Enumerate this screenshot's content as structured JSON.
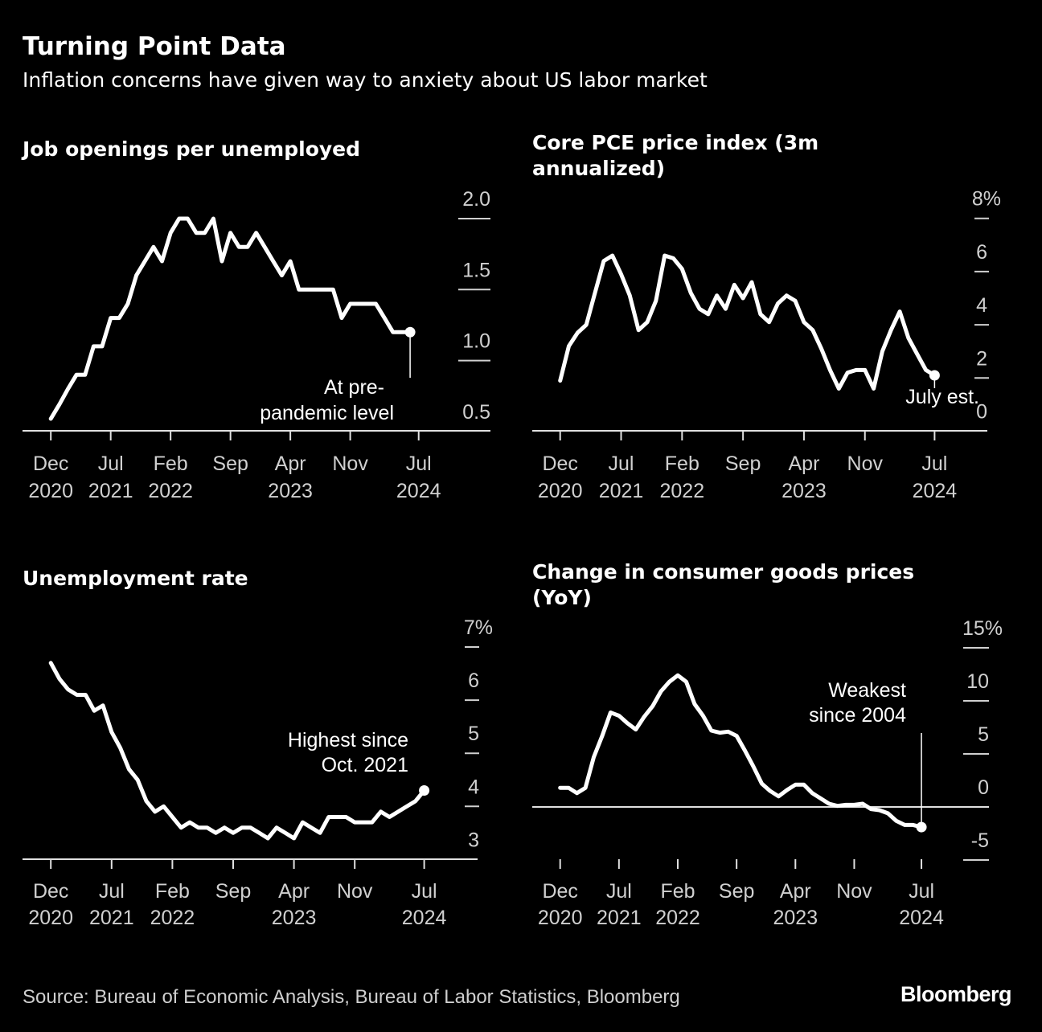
{
  "header": {
    "title": "Turning Point Data",
    "subtitle": "Inflation concerns have given way to anxiety about US labor market"
  },
  "footer": {
    "source": "Source: Bureau of Economic Analysis, Bureau of Labor Statistics, Bloomberg",
    "logo": "Bloomberg"
  },
  "colors": {
    "background": "#000000",
    "line": "#ffffff",
    "tick_label": "#d0d0d0"
  },
  "chart_data": [
    {
      "type": "line",
      "title": "Job openings per unemployed",
      "x_start": "Dec 2020",
      "x_end": "Jun 2024",
      "frequency": "monthly",
      "x_ticks": [
        [
          "Dec",
          "2020"
        ],
        [
          "Jul",
          "2021"
        ],
        [
          "Feb",
          "2022"
        ],
        [
          "Sep",
          ""
        ],
        [
          "Apr",
          "2023"
        ],
        [
          "Nov",
          ""
        ],
        [
          "Jul",
          "2024"
        ]
      ],
      "y_ticks": [
        {
          "value": 2.0,
          "label": "2.0"
        },
        {
          "value": 1.5,
          "label": "1.5"
        },
        {
          "value": 1.0,
          "label": "1.0"
        },
        {
          "value": 0.5,
          "label": "0.5"
        }
      ],
      "ylim": [
        0.5,
        2.0
      ],
      "values": [
        0.59,
        0.69,
        0.8,
        0.9,
        0.9,
        1.1,
        1.1,
        1.3,
        1.3,
        1.4,
        1.6,
        1.7,
        1.8,
        1.7,
        1.9,
        2.0,
        2.0,
        1.9,
        1.9,
        2.0,
        1.7,
        1.9,
        1.8,
        1.8,
        1.9,
        1.8,
        1.7,
        1.6,
        1.7,
        1.5,
        1.5,
        1.5,
        1.5,
        1.5,
        1.3,
        1.4,
        1.4,
        1.4,
        1.4,
        1.3,
        1.2,
        1.2,
        1.2
      ],
      "annotation": [
        "At pre-",
        "pandemic level"
      ]
    },
    {
      "type": "line",
      "title": "Core PCE price index (3m annualized)",
      "title_lines": [
        "Core PCE price index (3m",
        "annualized)"
      ],
      "x_start": "Dec 2020",
      "x_end": "Jul 2024",
      "frequency": "monthly",
      "x_ticks": [
        [
          "Dec",
          "2020"
        ],
        [
          "Jul",
          "2021"
        ],
        [
          "Feb",
          "2022"
        ],
        [
          "Sep",
          ""
        ],
        [
          "Apr",
          "2023"
        ],
        [
          "Nov",
          ""
        ],
        [
          "Jul",
          "2024"
        ]
      ],
      "y_ticks": [
        {
          "value": 8,
          "label": "8%"
        },
        {
          "value": 6,
          "label": "6"
        },
        {
          "value": 4,
          "label": "4"
        },
        {
          "value": 2,
          "label": "2"
        },
        {
          "value": 0,
          "label": "0"
        }
      ],
      "ylim": [
        0,
        8
      ],
      "values": [
        1.9,
        3.2,
        3.7,
        4.0,
        5.2,
        6.4,
        6.6,
        5.9,
        5.1,
        3.8,
        4.1,
        4.9,
        6.6,
        6.5,
        6.1,
        5.2,
        4.6,
        4.4,
        5.1,
        4.6,
        5.5,
        5.0,
        5.6,
        4.4,
        4.1,
        4.8,
        5.1,
        4.9,
        4.1,
        3.8,
        3.1,
        2.3,
        1.6,
        2.2,
        2.3,
        2.3,
        1.6,
        3.0,
        3.8,
        4.5,
        3.5,
        2.9,
        2.3,
        2.1
      ],
      "annotation": [
        "July est."
      ]
    },
    {
      "type": "line",
      "title": "Unemployment rate",
      "x_start": "Dec 2020",
      "x_end": "Jul 2024",
      "frequency": "monthly",
      "x_ticks": [
        [
          "Dec",
          "2020"
        ],
        [
          "Jul",
          "2021"
        ],
        [
          "Feb",
          "2022"
        ],
        [
          "Sep",
          ""
        ],
        [
          "Apr",
          "2023"
        ],
        [
          "Nov",
          ""
        ],
        [
          "Jul",
          "2024"
        ]
      ],
      "y_ticks": [
        {
          "value": 7,
          "label": "7%"
        },
        {
          "value": 6,
          "label": "6"
        },
        {
          "value": 5,
          "label": "5"
        },
        {
          "value": 4,
          "label": "4"
        },
        {
          "value": 3,
          "label": "3"
        }
      ],
      "ylim": [
        3,
        7
      ],
      "values": [
        6.7,
        6.4,
        6.2,
        6.1,
        6.1,
        5.8,
        5.9,
        5.4,
        5.1,
        4.7,
        4.5,
        4.1,
        3.9,
        4.0,
        3.8,
        3.6,
        3.7,
        3.6,
        3.6,
        3.5,
        3.6,
        3.5,
        3.6,
        3.6,
        3.5,
        3.4,
        3.6,
        3.5,
        3.4,
        3.7,
        3.6,
        3.5,
        3.8,
        3.8,
        3.8,
        3.7,
        3.7,
        3.7,
        3.9,
        3.8,
        3.9,
        4.0,
        4.1,
        4.3
      ],
      "annotation": [
        "Highest since",
        "Oct. 2021"
      ]
    },
    {
      "type": "line",
      "title": "Change in consumer goods prices (YoY)",
      "title_lines": [
        "Change in consumer goods prices",
        "(YoY)"
      ],
      "x_start": "Dec 2020",
      "x_end": "Jul 2024",
      "frequency": "monthly",
      "x_ticks": [
        [
          "Dec",
          "2020"
        ],
        [
          "Jul",
          "2021"
        ],
        [
          "Feb",
          "2022"
        ],
        [
          "Sep",
          ""
        ],
        [
          "Apr",
          "2023"
        ],
        [
          "Nov",
          ""
        ],
        [
          "Jul",
          "2024"
        ]
      ],
      "y_ticks": [
        {
          "value": 15,
          "label": "15%"
        },
        {
          "value": 10,
          "label": "10"
        },
        {
          "value": 5,
          "label": "5"
        },
        {
          "value": 0,
          "label": "0"
        },
        {
          "value": -5,
          "label": "-5"
        }
      ],
      "ylim": [
        -5,
        15
      ],
      "values": [
        1.8,
        1.8,
        1.3,
        1.8,
        4.7,
        6.7,
        8.9,
        8.6,
        7.9,
        7.3,
        8.5,
        9.5,
        10.9,
        11.8,
        12.4,
        11.8,
        9.7,
        8.6,
        7.2,
        7.0,
        7.1,
        6.7,
        5.3,
        3.8,
        2.2,
        1.5,
        1.0,
        1.6,
        2.1,
        2.1,
        1.3,
        0.8,
        0.3,
        0.1,
        0.2,
        0.2,
        0.3,
        -0.2,
        -0.3,
        -0.6,
        -1.3,
        -1.7,
        -1.7,
        -1.9
      ],
      "annotation": [
        "Weakest",
        "since 2004"
      ]
    }
  ]
}
